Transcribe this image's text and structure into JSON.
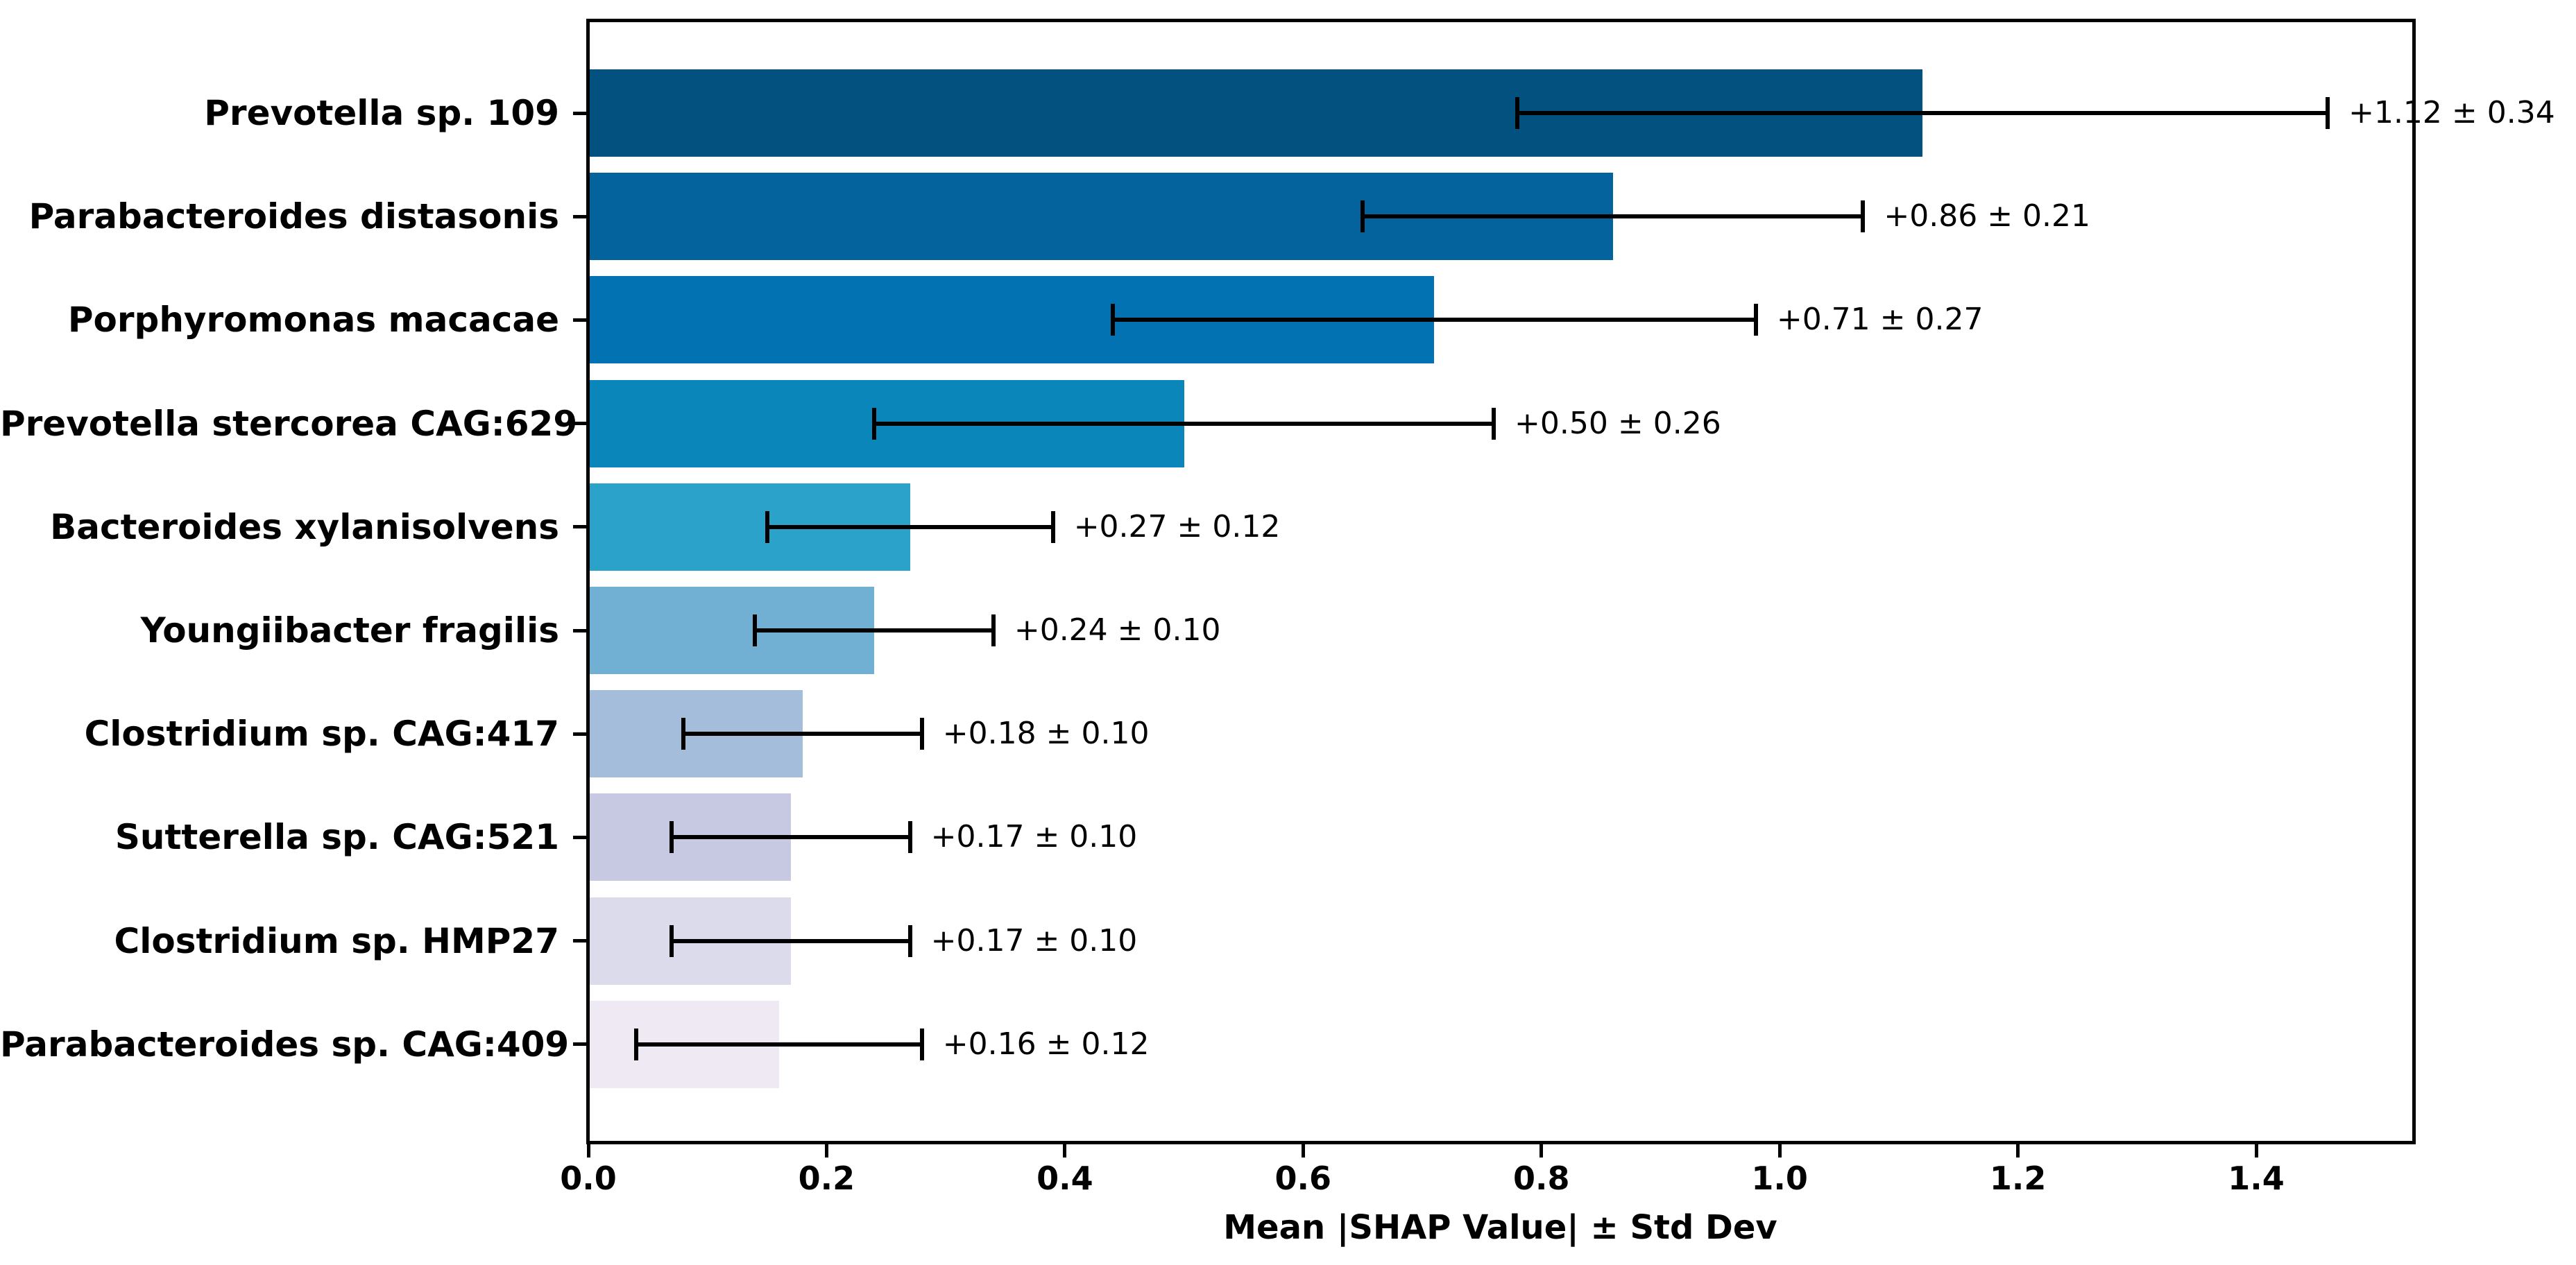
{
  "chart_data": {
    "type": "bar",
    "orientation": "horizontal",
    "title": "",
    "xlabel": "Mean |SHAP Value| ± Std Dev",
    "ylabel": "",
    "grid": false,
    "legend_position": "none",
    "xlim": [
      0,
      1.531
    ],
    "xticks": [
      0.0,
      0.2,
      0.4,
      0.6,
      0.8,
      1.0,
      1.2,
      1.4
    ],
    "xtick_labels": [
      "0.0",
      "0.2",
      "0.4",
      "0.6",
      "0.8",
      "1.0",
      "1.2",
      "1.4"
    ],
    "categories": [
      "Prevotella sp. 109",
      "Parabacteroides distasonis",
      "Porphyromonas macacae",
      "Prevotella stercorea CAG:629",
      "Bacteroides xylanisolvens",
      "Youngiibacter fragilis",
      "Clostridium sp. CAG:417",
      "Sutterella sp. CAG:521",
      "Clostridium sp. HMP27",
      "Parabacteroides sp. CAG:409"
    ],
    "values": [
      1.12,
      0.86,
      0.71,
      0.5,
      0.27,
      0.24,
      0.18,
      0.17,
      0.17,
      0.16
    ],
    "errors": [
      0.34,
      0.21,
      0.27,
      0.26,
      0.12,
      0.1,
      0.1,
      0.1,
      0.1,
      0.12
    ],
    "value_labels": [
      "+1.12 ± 0.34",
      "+0.86 ± 0.21",
      "+0.71 ± 0.27",
      "+0.50 ± 0.26",
      "+0.27 ± 0.12",
      "+0.24 ± 0.10",
      "+0.18 ± 0.10",
      "+0.17 ± 0.10",
      "+0.17 ± 0.10",
      "+0.16 ± 0.12"
    ],
    "bar_colors": [
      "#02517f",
      "#04629c",
      "#0272b2",
      "#0b86ba",
      "#2ba2ca",
      "#72b0d3",
      "#a4bddb",
      "#c7c9e3",
      "#dcdbec",
      "#efe9f3"
    ],
    "error_bar_color": "#000000",
    "axis_color": "#000000",
    "background_color": "#ffffff"
  }
}
